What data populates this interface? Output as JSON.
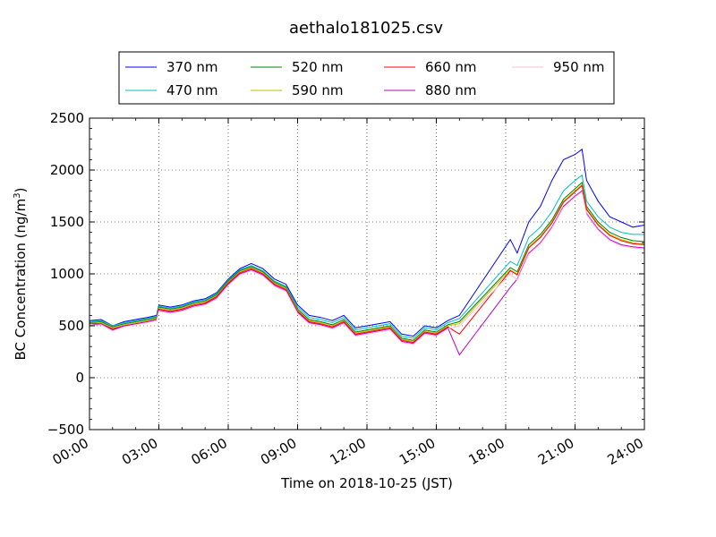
{
  "chart_data": {
    "type": "line",
    "title": "aethalo181025.csv",
    "xlabel": "Time on 2018-10-25 (JST)",
    "ylabel": "BC Concentration (ng/m",
    "ylabel_superscript": "3",
    "ylabel_suffix": ")",
    "xlim": [
      0,
      24
    ],
    "ylim": [
      -500,
      2500
    ],
    "xticks": [
      0,
      3,
      6,
      9,
      12,
      15,
      18,
      21,
      24
    ],
    "xtick_labels": [
      "00:00",
      "03:00",
      "06:00",
      "09:00",
      "12:00",
      "15:00",
      "18:00",
      "21:00",
      "24:00"
    ],
    "yticks": [
      -500,
      0,
      500,
      1000,
      1500,
      2000,
      2500
    ],
    "ytick_labels": [
      "−500",
      "0",
      "500",
      "1000",
      "1500",
      "2000",
      "2500"
    ],
    "grid": true,
    "legend_position": "top",
    "x_unit": "hours",
    "series": [
      {
        "name": "370 nm",
        "color": "#0000ff",
        "x": [
          0,
          0.5,
          1,
          1.5,
          2,
          2.5,
          2.9,
          3,
          3.5,
          4,
          4.5,
          5,
          5.5,
          6,
          6.5,
          7,
          7.5,
          8,
          8.5,
          9,
          9.5,
          10,
          10.5,
          11,
          11.5,
          12,
          12.5,
          13,
          13.5,
          14,
          14.5,
          15,
          15.5,
          16,
          18.2,
          18.5,
          19,
          19.5,
          20,
          20.5,
          21,
          21.3,
          21.5,
          22,
          22.5,
          23,
          23.5,
          24
        ],
        "y": [
          550,
          560,
          500,
          540,
          560,
          580,
          600,
          700,
          680,
          700,
          740,
          760,
          820,
          950,
          1050,
          1100,
          1050,
          950,
          900,
          700,
          600,
          580,
          550,
          600,
          480,
          500,
          520,
          540,
          420,
          400,
          500,
          480,
          550,
          600,
          1330,
          1200,
          1500,
          1650,
          1900,
          2100,
          2150,
          2200,
          1900,
          1700,
          1550,
          1500,
          1450,
          1470
        ]
      },
      {
        "name": "470 nm",
        "color": "#00bfbf",
        "x": [
          0,
          0.5,
          1,
          1.5,
          2,
          2.5,
          2.9,
          3,
          3.5,
          4,
          4.5,
          5,
          5.5,
          6,
          6.5,
          7,
          7.5,
          8,
          8.5,
          9,
          9.5,
          10,
          10.5,
          11,
          11.5,
          12,
          12.5,
          13,
          13.5,
          14,
          14.5,
          15,
          15.5,
          16,
          18.2,
          18.5,
          19,
          19.5,
          20,
          20.5,
          21,
          21.3,
          21.5,
          22,
          22.5,
          23,
          23.5,
          24
        ],
        "y": [
          540,
          550,
          500,
          530,
          550,
          570,
          590,
          690,
          670,
          690,
          730,
          750,
          810,
          940,
          1040,
          1080,
          1030,
          930,
          880,
          680,
          580,
          560,
          530,
          580,
          460,
          480,
          500,
          520,
          400,
          380,
          480,
          460,
          530,
          570,
          1120,
          1080,
          1350,
          1450,
          1600,
          1800,
          1900,
          1950,
          1700,
          1550,
          1450,
          1400,
          1380,
          1380
        ]
      },
      {
        "name": "520 nm",
        "color": "#008000",
        "x": [
          0,
          0.5,
          1,
          1.5,
          2,
          2.5,
          2.9,
          3,
          3.5,
          4,
          4.5,
          5,
          5.5,
          6,
          6.5,
          7,
          7.5,
          8,
          8.5,
          9,
          9.5,
          10,
          10.5,
          11,
          11.5,
          12,
          12.5,
          13,
          13.5,
          14,
          14.5,
          15,
          15.5,
          16,
          18.2,
          18.5,
          19,
          19.5,
          20,
          20.5,
          21,
          21.3,
          21.5,
          22,
          22.5,
          23,
          23.5,
          24
        ],
        "y": [
          530,
          540,
          490,
          520,
          540,
          560,
          580,
          680,
          660,
          680,
          720,
          740,
          800,
          930,
          1030,
          1070,
          1020,
          920,
          870,
          660,
          560,
          540,
          510,
          560,
          440,
          460,
          480,
          500,
          380,
          360,
          460,
          440,
          510,
          540,
          1060,
          1020,
          1280,
          1380,
          1520,
          1720,
          1820,
          1880,
          1650,
          1500,
          1400,
          1350,
          1320,
          1310
        ]
      },
      {
        "name": "590 nm",
        "color": "#bfbf00",
        "x": [
          0,
          0.5,
          1,
          1.5,
          2,
          2.5,
          2.9,
          3,
          3.5,
          4,
          4.5,
          5,
          5.5,
          6,
          6.5,
          7,
          7.5,
          8,
          8.5,
          9,
          9.5,
          10,
          10.5,
          11,
          11.5,
          12,
          12.5,
          13,
          13.5,
          14,
          14.5,
          15,
          15.5,
          16,
          18.2,
          18.5,
          19,
          19.5,
          20,
          20.5,
          21,
          21.3,
          21.5,
          22,
          22.5,
          23,
          23.5,
          24
        ],
        "y": [
          520,
          530,
          480,
          510,
          530,
          550,
          570,
          670,
          650,
          670,
          710,
          730,
          790,
          920,
          1020,
          1060,
          1010,
          910,
          860,
          650,
          550,
          530,
          500,
          550,
          430,
          450,
          470,
          490,
          370,
          350,
          450,
          430,
          500,
          520,
          1040,
          1000,
          1260,
          1360,
          1500,
          1700,
          1800,
          1860,
          1630,
          1480,
          1380,
          1330,
          1300,
          1290
        ]
      },
      {
        "name": "660 nm",
        "color": "#ff0000",
        "x": [
          0,
          0.5,
          1,
          1.5,
          2,
          2.5,
          2.9,
          3,
          3.5,
          4,
          4.5,
          5,
          5.5,
          6,
          6.5,
          7,
          7.5,
          8,
          8.5,
          9,
          9.5,
          10,
          10.5,
          11,
          11.5,
          12,
          12.5,
          13,
          13.5,
          14,
          14.5,
          15,
          15.5,
          16,
          18.2,
          18.5,
          19,
          19.5,
          20,
          20.5,
          21,
          21.3,
          21.5,
          22,
          22.5,
          23,
          23.5,
          24
        ],
        "y": [
          520,
          520,
          470,
          500,
          520,
          540,
          560,
          660,
          640,
          660,
          700,
          720,
          780,
          910,
          1010,
          1050,
          1000,
          900,
          850,
          640,
          540,
          520,
          490,
          540,
          420,
          440,
          460,
          480,
          360,
          340,
          440,
          420,
          490,
          420,
          1030,
          990,
          1250,
          1350,
          1490,
          1690,
          1790,
          1850,
          1620,
          1470,
          1370,
          1320,
          1290,
          1280
        ]
      },
      {
        "name": "880 nm",
        "color": "#bf00bf",
        "x": [
          0,
          0.5,
          1,
          1.5,
          2,
          2.5,
          2.9,
          3,
          3.5,
          4,
          4.5,
          5,
          5.5,
          6,
          6.5,
          7,
          7.5,
          8,
          8.5,
          9,
          9.5,
          10,
          10.5,
          11,
          11.5,
          12,
          12.5,
          13,
          13.5,
          14,
          14.5,
          15,
          15.5,
          16,
          18.2,
          18.5,
          19,
          19.5,
          20,
          20.5,
          21,
          21.3,
          21.5,
          22,
          22.5,
          23,
          23.5,
          24
        ],
        "y": [
          500,
          520,
          460,
          500,
          520,
          540,
          560,
          650,
          630,
          650,
          690,
          710,
          770,
          900,
          1000,
          1040,
          990,
          890,
          840,
          630,
          530,
          510,
          480,
          530,
          410,
          430,
          450,
          470,
          350,
          330,
          430,
          410,
          480,
          220,
          870,
          950,
          1200,
          1300,
          1450,
          1650,
          1750,
          1800,
          1580,
          1430,
          1330,
          1280,
          1260,
          1250
        ]
      },
      {
        "name": "950 nm",
        "color": "#ffc0cb",
        "x": [
          0,
          0.5,
          1,
          1.5,
          2,
          2.5,
          2.9,
          3,
          3.5,
          4,
          4.5,
          5,
          5.5,
          6,
          6.5,
          7,
          7.5,
          8,
          8.5,
          9,
          9.5,
          10,
          10.5,
          11,
          11.5,
          12,
          12.5,
          13,
          13.5,
          14,
          14.5,
          15,
          15.5,
          16,
          18.2,
          18.5,
          19,
          19.5,
          20,
          20.5,
          21,
          21.3,
          21.5,
          22,
          22.5,
          23,
          23.5,
          24
        ],
        "y": [
          500,
          510,
          450,
          490,
          510,
          530,
          550,
          640,
          620,
          640,
          680,
          700,
          760,
          890,
          990,
          1030,
          980,
          880,
          830,
          620,
          520,
          500,
          470,
          520,
          400,
          420,
          440,
          460,
          340,
          320,
          420,
          400,
          470,
          500,
          1000,
          940,
          1190,
          1290,
          1440,
          1640,
          1740,
          1790,
          1570,
          1420,
          1320,
          1270,
          1250,
          1240
        ]
      }
    ],
    "colors": {
      "background": "#ffffff",
      "axes": "#000000",
      "grid": "#000000"
    }
  }
}
